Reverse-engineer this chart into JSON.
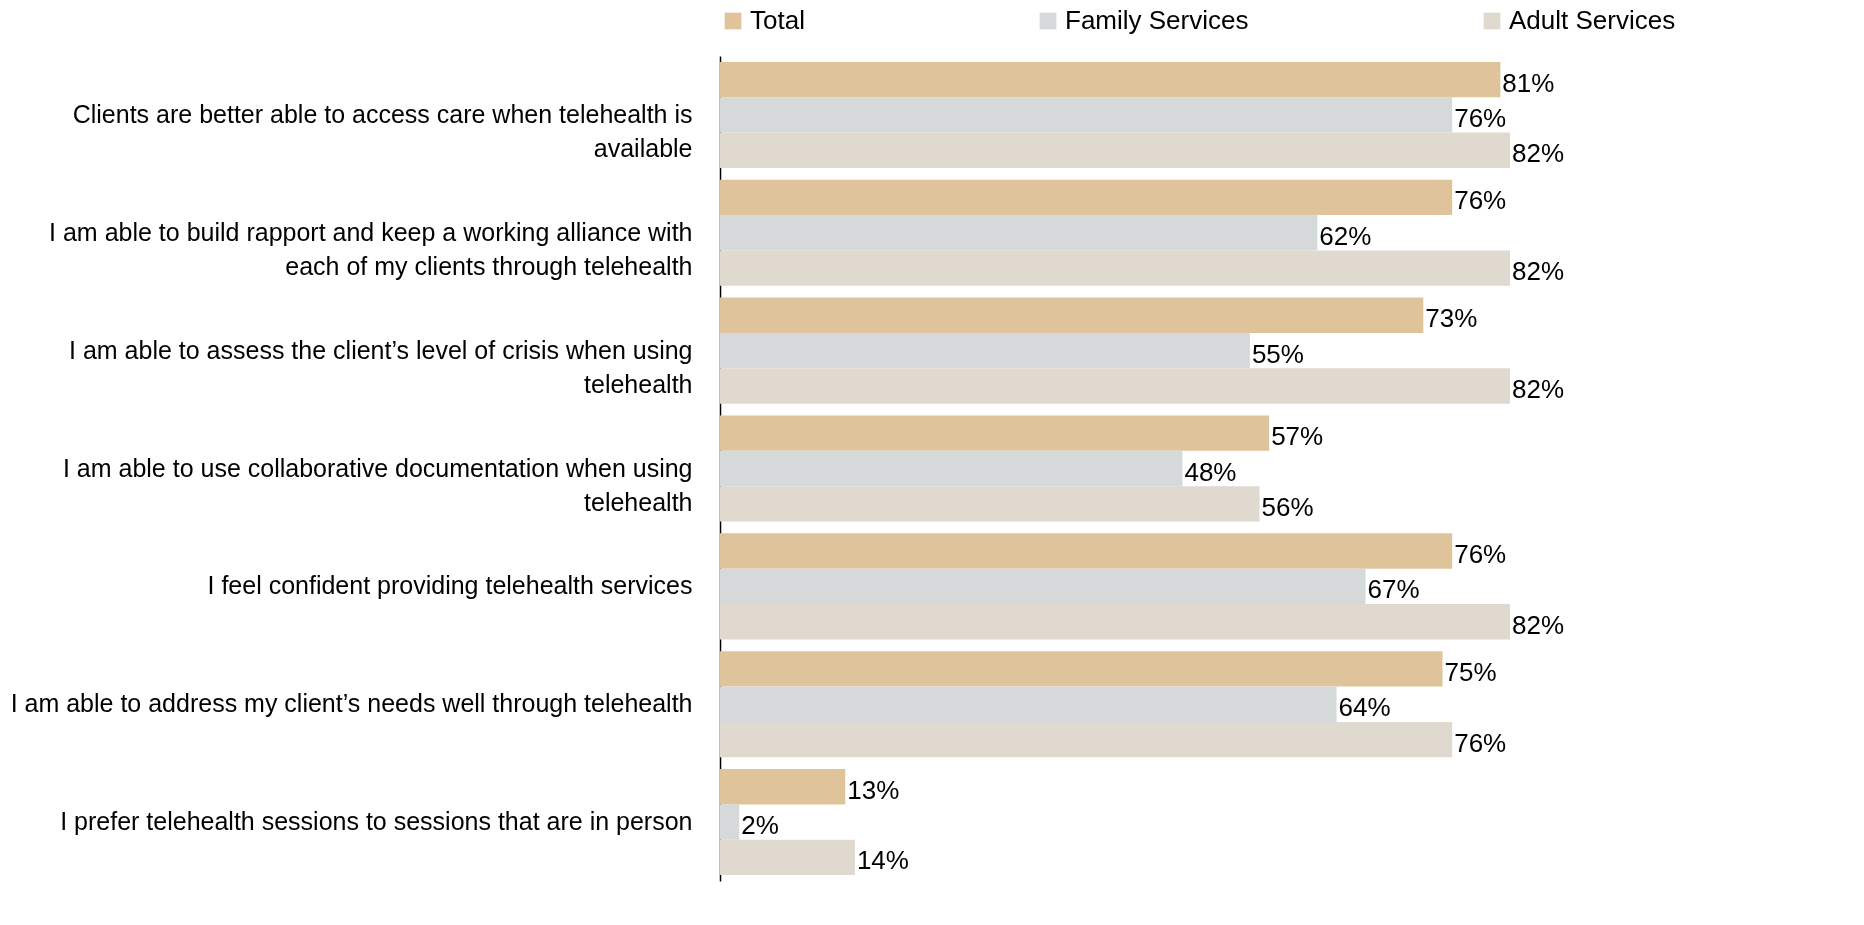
{
  "chart_data": {
    "type": "bar",
    "orientation": "horizontal",
    "legend": "top",
    "tick_labels": "y",
    "categories": [
      "Clients are better able to access care when telehealth is available",
      "I am able to build rapport and keep a working alliance with each of my clients through telehealth",
      "I am able to assess the client’s level of crisis when using telehealth",
      "I am able to use collaborative documentation when using telehealth",
      "I feel confident providing telehealth services",
      "I am able to address my client’s needs well through telehealth",
      "I prefer telehealth sessions to sessions that are in person"
    ],
    "series": [
      {
        "name": "Total",
        "color": "#dfc49b",
        "values": [
          81,
          76,
          73,
          57,
          76,
          75,
          13
        ],
        "value_labels": [
          "81%",
          "76%",
          "73%",
          "57%",
          "76%",
          "75%",
          "13%"
        ]
      },
      {
        "name": "Family Services",
        "color": "#d5d9d9",
        "values": [
          76,
          62,
          55,
          48,
          67,
          64,
          2
        ],
        "value_labels": [
          "76%",
          "62%",
          "55%",
          "48%",
          "67%",
          "64%",
          "2%"
        ]
      },
      {
        "name": "Adult Services",
        "color": "#e0d9cf",
        "values": [
          82,
          82,
          82,
          56,
          82,
          76,
          14
        ],
        "value_labels": [
          "82%",
          "82%",
          "82%",
          "56%",
          "82%",
          "76%",
          "14%"
        ]
      }
    ]
  }
}
